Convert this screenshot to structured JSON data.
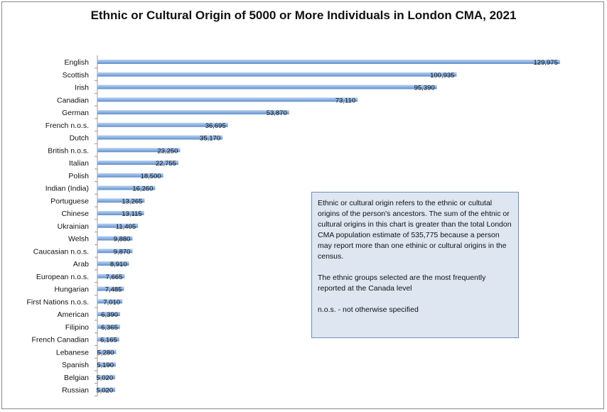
{
  "chart_data": {
    "type": "bar",
    "orientation": "horizontal",
    "title": "Ethnic or Cultural Origin of 5000 or More Individuals in London CMA, 2021",
    "categories": [
      "English",
      "Scottish",
      "Irish",
      "Canadian",
      "German",
      "French n.o.s.",
      "Dutch",
      "British n.o.s.",
      "Italian",
      "Polish",
      "Indian (India)",
      "Portuguese",
      "Chinese",
      "Ukrainian",
      "Welsh",
      "Caucasian n.o.s.",
      "Arab",
      "European n.o.s.",
      "Hungarian",
      "First Nations n.o.s.",
      "American",
      "Filipino",
      "French Canadian",
      "Lebanese",
      "Spanish",
      "Belgian",
      "Russian"
    ],
    "values": [
      129975,
      100935,
      95390,
      73110,
      53870,
      36695,
      35170,
      23250,
      22755,
      18500,
      16260,
      13265,
      13115,
      11405,
      9880,
      9870,
      8910,
      7665,
      7485,
      7010,
      6390,
      6365,
      6165,
      5280,
      5190,
      5020,
      5020
    ],
    "value_labels": [
      "129,975",
      "100,935",
      "95,390",
      "73,110",
      "53,870",
      "36,695",
      "35,170",
      "23,250",
      "22,755",
      "18,500",
      "16,260",
      "13,265",
      "13,115",
      "11,405",
      "9,880",
      "9,870",
      "8,910",
      "7,665",
      "7,485",
      "7,010",
      "6,390",
      "6,365",
      "6,165",
      "5,280",
      "5,190",
      "5,020",
      "5,020"
    ],
    "xlim": [
      0,
      130000
    ],
    "grid": false,
    "bar_color": "#8eb4e3"
  },
  "note": {
    "paragraph1": "Ethnic or cultural origin refers to the ethnic or cultutal origins of the person's ancestors. The sum of the ehtnic or cultural origins in this chart is greater than the total London CMA population estimate of 535,775 because a person may report more than one ethinic or cultural origins in the census.",
    "paragraph2": "The ethnic groups selected are the most frequently reported at the Canada level",
    "paragraph3": "n.o.s. - not otherwise specified"
  }
}
